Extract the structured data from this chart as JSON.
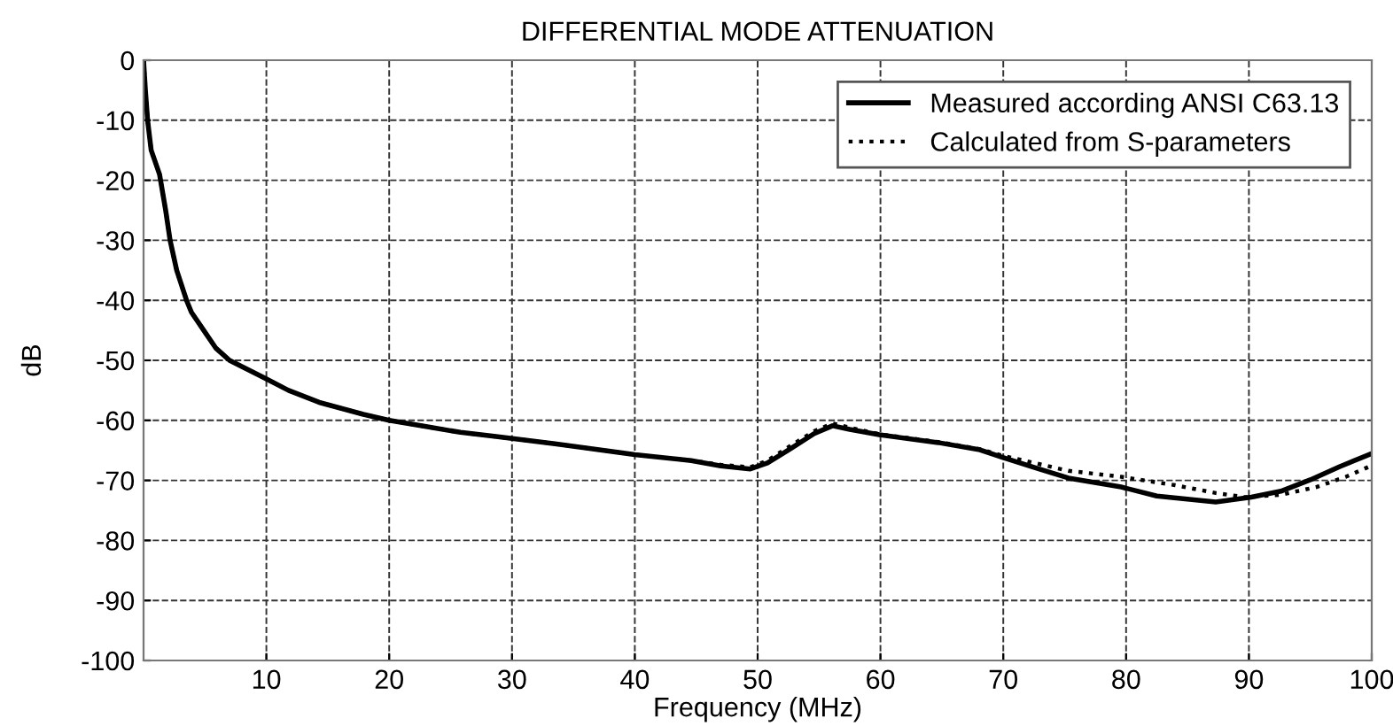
{
  "chart_data": {
    "type": "line",
    "title": "DIFFERENTIAL MODE ATTENUATION",
    "xlabel": "Frequency (MHz)",
    "ylabel": "dB",
    "xlim": [
      0,
      100
    ],
    "xticks": [
      10,
      20,
      30,
      40,
      50,
      60,
      70,
      80,
      90,
      100
    ],
    "ylim": [
      -100,
      0
    ],
    "yticks": [
      -100,
      -90,
      -80,
      -70,
      -60,
      -50,
      -40,
      -30,
      -20,
      -10,
      0
    ],
    "grid": true,
    "legend": "top right",
    "series": [
      {
        "name": "Measured according ANSI C63.13",
        "color": "#000000",
        "line_style": "solid",
        "x": [
          0,
          0.15,
          0.33,
          0.62,
          1.3,
          1.8,
          2.16,
          2.7,
          3.5,
          3.9,
          4.9,
          5.9,
          7.0,
          9.9,
          11.8,
          14.3,
          16.1,
          17.9,
          20,
          22.9,
          25.8,
          28.7,
          33.5,
          40,
          44.6,
          47,
          49.4,
          50.8,
          52.7,
          54.6,
          56.1,
          57.5,
          59.9,
          64.7,
          68.1,
          70,
          72.9,
          75.3,
          79.6,
          82.5,
          87.3,
          90.2,
          92.6,
          95,
          97.4,
          99.8
        ],
        "values": [
          0,
          -5,
          -10,
          -15,
          -19,
          -25,
          -30,
          -35,
          -40,
          -42,
          -45,
          -48,
          -50,
          -53,
          -55,
          -57,
          -58,
          -59,
          -60,
          -61,
          -62,
          -62.7,
          -63.9,
          -65.7,
          -66.7,
          -67.6,
          -68.1,
          -67.1,
          -64.7,
          -62.2,
          -60.9,
          -61.5,
          -62.4,
          -63.7,
          -64.9,
          -66.2,
          -68.1,
          -69.6,
          -71.1,
          -72.6,
          -73.6,
          -72.8,
          -71.8,
          -69.9,
          -67.7,
          -65.7
        ]
      },
      {
        "name": "Calculated from S-parameters",
        "color": "#000000",
        "line_style": "dotted",
        "x": [
          0,
          0.15,
          0.33,
          0.62,
          1.3,
          1.8,
          2.16,
          2.7,
          3.5,
          3.9,
          4.9,
          5.9,
          7.0,
          9.9,
          11.8,
          14.3,
          16.1,
          17.9,
          20,
          22.9,
          25.8,
          28.7,
          33.5,
          40,
          44.6,
          47,
          49.4,
          50.8,
          52.7,
          54.6,
          56.1,
          57.5,
          59.9,
          64.7,
          68.1,
          70,
          75.3,
          79.6,
          84,
          87.3,
          89.7,
          92.6,
          95.5,
          97.9,
          99.8
        ],
        "values": [
          0,
          -5,
          -10,
          -15,
          -19,
          -25,
          -30,
          -35,
          -40,
          -42,
          -45,
          -48,
          -50,
          -53,
          -55,
          -57,
          -58,
          -59,
          -60,
          -61,
          -62,
          -62.7,
          -63.9,
          -65.7,
          -66.7,
          -67.4,
          -67.8,
          -66.7,
          -64.2,
          -61.8,
          -60.5,
          -61.2,
          -62.3,
          -63.6,
          -64.8,
          -65.9,
          -68.4,
          -69.4,
          -70.8,
          -72.1,
          -72.8,
          -72.4,
          -71.1,
          -69.4,
          -67.7
        ]
      }
    ]
  }
}
